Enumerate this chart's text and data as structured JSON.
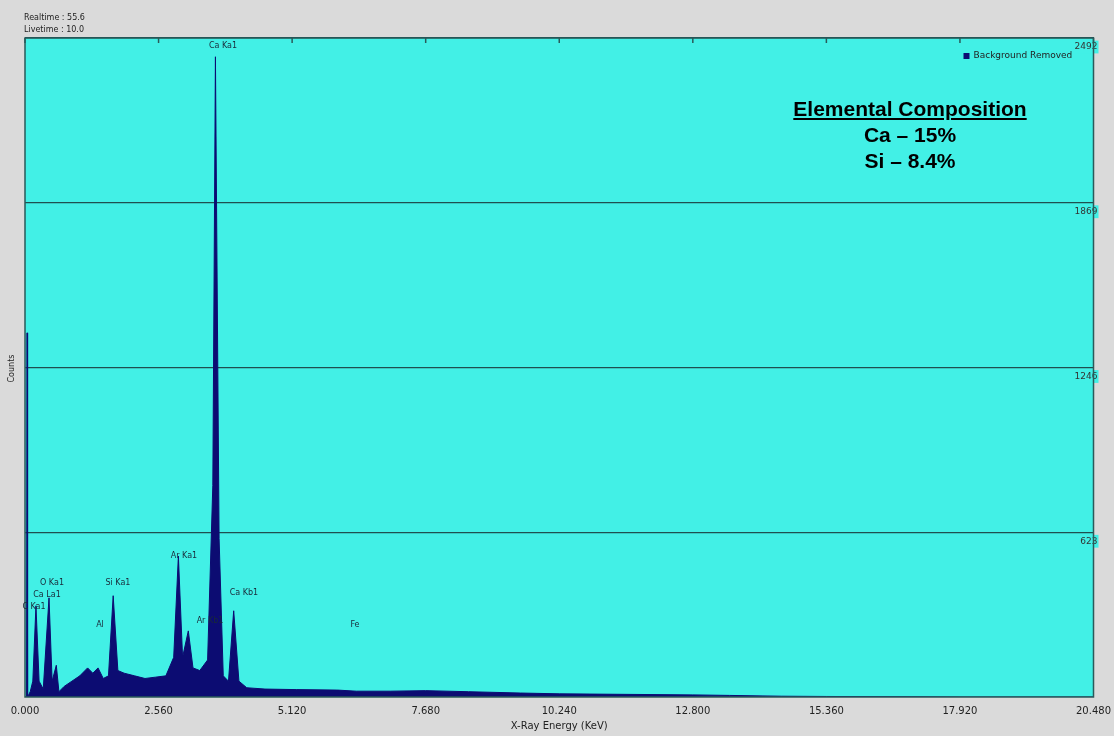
{
  "chart_data": {
    "type": "area",
    "xlabel": "X-Ray Energy (KeV)",
    "ylabel": "Counts",
    "x": [
      0,
      0.03,
      0.04,
      0.05,
      0.1,
      0.15,
      0.21,
      0.27,
      0.35,
      0.46,
      0.52,
      0.6,
      0.65,
      0.75,
      0.9,
      1.05,
      1.2,
      1.3,
      1.4,
      1.5,
      1.6,
      1.69,
      1.78,
      1.9,
      2.1,
      2.3,
      2.5,
      2.7,
      2.85,
      2.94,
      3.02,
      3.13,
      3.22,
      3.35,
      3.5,
      3.6,
      3.65,
      3.72,
      3.8,
      3.9,
      4.0,
      4.1,
      4.25,
      4.6,
      5.2,
      6.0,
      6.35,
      7.0,
      7.68,
      8.5,
      9.5,
      10.24,
      11.5,
      12.8,
      13.5,
      14.5,
      15.36,
      17,
      18,
      20.48
    ],
    "series": [
      {
        "name": "Background Removed",
        "color": "#0c0c72",
        "values": [
          0,
          0,
          1377,
          0,
          20,
          60,
          345,
          60,
          30,
          375,
          60,
          120,
          20,
          40,
          60,
          80,
          110,
          90,
          110,
          70,
          80,
          383,
          100,
          90,
          80,
          70,
          75,
          80,
          150,
          533,
          150,
          250,
          110,
          100,
          140,
          800,
          2421,
          600,
          80,
          60,
          326,
          60,
          35,
          30,
          28,
          26,
          22,
          22,
          24,
          20,
          15,
          12,
          10,
          8,
          6,
          3,
          2,
          1,
          0,
          0
        ]
      }
    ],
    "xlim": [
      0,
      20.48
    ],
    "xticks": [
      {
        "value": 0,
        "label": "0.000"
      },
      {
        "value": 2.56,
        "label": "2.560"
      },
      {
        "value": 5.12,
        "label": "5.120"
      },
      {
        "value": 7.68,
        "label": "7.680"
      },
      {
        "value": 10.24,
        "label": "10.240"
      },
      {
        "value": 12.8,
        "label": "12.800"
      },
      {
        "value": 15.36,
        "label": "15.360"
      },
      {
        "value": 17.92,
        "label": "17.920"
      },
      {
        "value": 20.48,
        "label": "20.480"
      }
    ],
    "ylim": [
      0,
      2492
    ],
    "yticks": [
      623,
      1246,
      1869,
      2492
    ],
    "grid": "y",
    "legend": "top right",
    "annotations": [
      "Realtime : 55.6",
      "Livetime : 10.0",
      "Elemental Composition",
      "Ca – 15%",
      "Si – 8.4%",
      "Ca Ka1",
      "O Ka1",
      "Ca La1",
      "C Ka1",
      "Si Ka1",
      "Al",
      "Ar Ka1",
      "Ar Kb1",
      "Ca Kb1",
      "Fe"
    ]
  }
}
